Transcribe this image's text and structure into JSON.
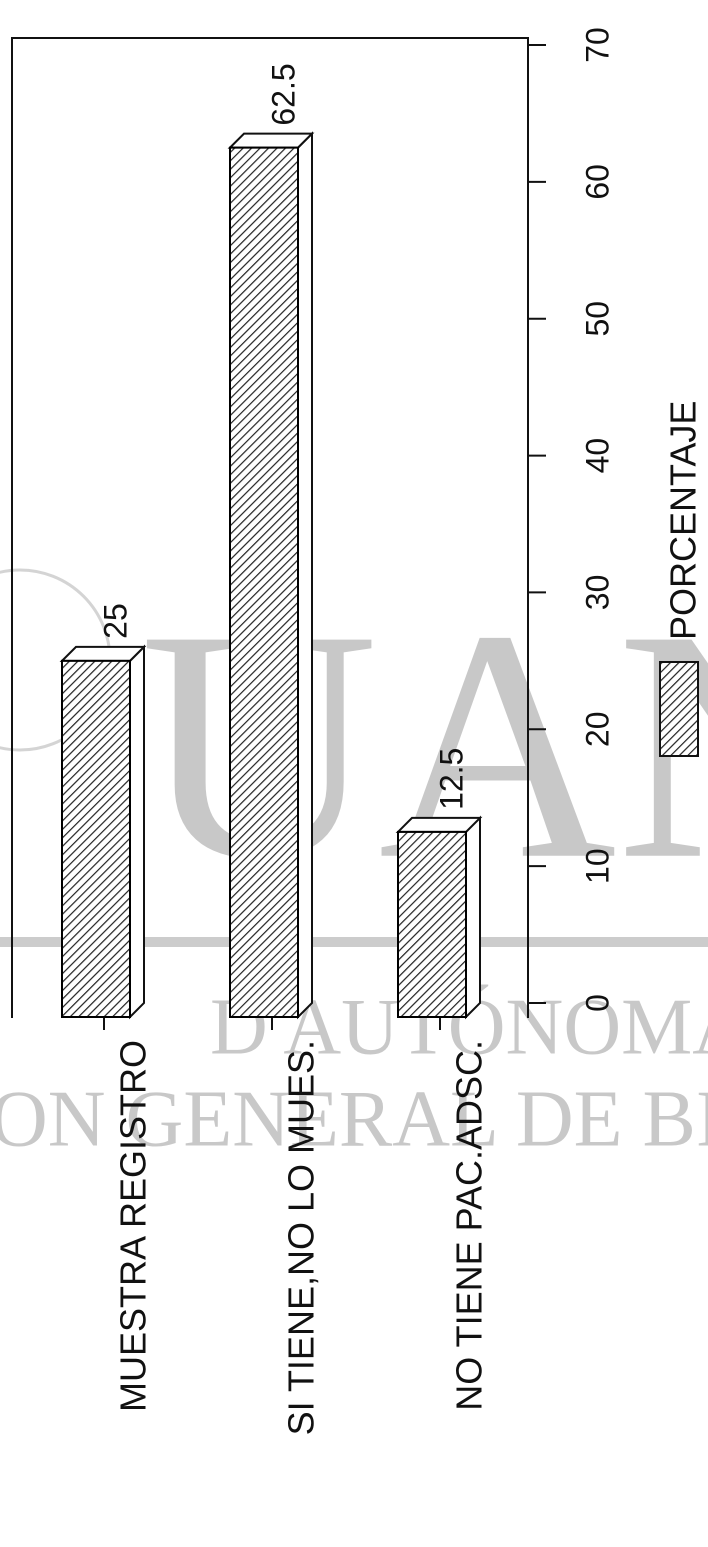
{
  "chart_data": {
    "type": "bar",
    "categories": [
      "MUESTRA REGISTRO",
      "SI TIENE,NO LO MUES.",
      "NO TIENE PAC.ADSC."
    ],
    "series": [
      {
        "name": "PORCENTAJE",
        "color": "#000000",
        "values": [
          25,
          62.5,
          12.5
        ]
      }
    ],
    "ylim": [
      0,
      70
    ],
    "yticks": [
      0,
      10,
      20,
      30,
      40,
      50,
      60,
      70
    ]
  },
  "watermark": [
    "UAN",
    "D AUTÓNOMA DE NUEVO",
    "ON GENERAL DE BIBLIOTECA"
  ]
}
